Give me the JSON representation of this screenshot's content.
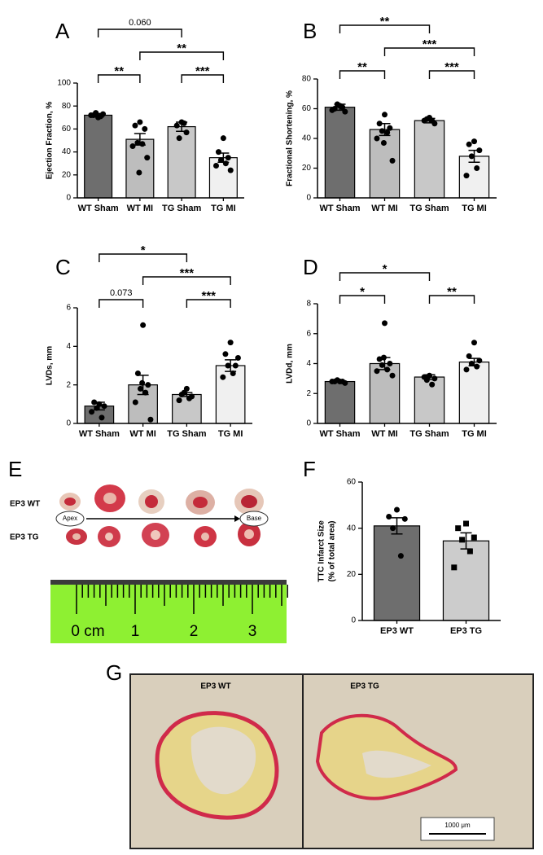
{
  "chart_data": [
    {
      "type": "bar",
      "panel": "A",
      "ylabel": "Ejection Fraction, %",
      "categories": [
        "WT Sham",
        "WT MI",
        "TG Sham",
        "TG MI"
      ],
      "values": [
        72,
        51,
        62,
        35
      ],
      "errors": [
        1.5,
        5,
        4,
        4
      ],
      "points": [
        [
          70,
          72,
          73,
          74,
          71,
          72
        ],
        [
          66,
          63,
          60,
          48,
          47,
          45,
          35,
          22
        ],
        [
          66,
          63,
          57,
          52,
          65
        ],
        [
          52,
          40,
          35,
          33,
          30,
          28,
          24
        ]
      ],
      "colors": [
        "#6e6e6e",
        "#bdbdbd",
        "#c8c8c8",
        "#f0f0f0"
      ],
      "markers": [
        "circle",
        "circle",
        "circle",
        "circle"
      ],
      "ylim": [
        0,
        100
      ],
      "yticks": [
        0,
        20,
        40,
        60,
        80,
        100
      ],
      "comparisons": [
        {
          "from": "WT Sham",
          "to": "WT MI",
          "label": "**"
        },
        {
          "from": "TG Sham",
          "to": "TG MI",
          "label": "***"
        },
        {
          "from": "WT MI",
          "to": "TG MI",
          "label": "**"
        },
        {
          "from": "WT Sham",
          "to": "TG Sham",
          "label": "0.060"
        }
      ]
    },
    {
      "type": "bar",
      "panel": "B",
      "ylabel": "Fractional Shortening, %",
      "categories": [
        "WT Sham",
        "WT MI",
        "TG Sham",
        "TG MI"
      ],
      "values": [
        61,
        46,
        52,
        28
      ],
      "errors": [
        2,
        4,
        1.5,
        4
      ],
      "points": [
        [
          62,
          60,
          58,
          63,
          61,
          59
        ],
        [
          56,
          50,
          47,
          45,
          44,
          40,
          25,
          37
        ],
        [
          54,
          52,
          50,
          53,
          52
        ],
        [
          38,
          36,
          32,
          28,
          20,
          15
        ]
      ],
      "colors": [
        "#6e6e6e",
        "#bdbdbd",
        "#c8c8c8",
        "#f0f0f0"
      ],
      "markers": [
        "circle",
        "circle",
        "circle",
        "circle"
      ],
      "ylim": [
        0,
        80
      ],
      "yticks": [
        0,
        20,
        40,
        60,
        80
      ],
      "comparisons": [
        {
          "from": "WT Sham",
          "to": "WT MI",
          "label": "**"
        },
        {
          "from": "TG Sham",
          "to": "TG MI",
          "label": "***"
        },
        {
          "from": "WT MI",
          "to": "TG MI",
          "label": "***"
        },
        {
          "from": "WT Sham",
          "to": "TG Sham",
          "label": "**"
        }
      ]
    },
    {
      "type": "bar",
      "panel": "C",
      "ylabel": "LVDs, mm",
      "categories": [
        "WT Sham",
        "WT MI",
        "TG Sham",
        "TG MI"
      ],
      "values": [
        0.9,
        2.0,
        1.5,
        3.0
      ],
      "errors": [
        0.2,
        0.5,
        0.1,
        0.3
      ],
      "points": [
        [
          1.0,
          1.1,
          0.9,
          0.8,
          0.3,
          0.6
        ],
        [
          5.1,
          2.6,
          2.0,
          1.8,
          1.6,
          1.1,
          0.2,
          2.1
        ],
        [
          1.8,
          1.5,
          1.4,
          1.6,
          1.3,
          1.2
        ],
        [
          4.2,
          3.6,
          3.0,
          3.0,
          2.6,
          2.4,
          3.4
        ]
      ],
      "colors": [
        "#6e6e6e",
        "#bdbdbd",
        "#c8c8c8",
        "#f0f0f0"
      ],
      "markers": [
        "circle",
        "circle",
        "circle",
        "circle"
      ],
      "ylim": [
        0,
        6
      ],
      "yticks": [
        0,
        2,
        4,
        6
      ],
      "comparisons": [
        {
          "from": "WT Sham",
          "to": "WT MI",
          "label": "0.073"
        },
        {
          "from": "TG Sham",
          "to": "TG MI",
          "label": "***"
        },
        {
          "from": "WT MI",
          "to": "TG MI",
          "label": "***"
        },
        {
          "from": "WT Sham",
          "to": "TG Sham",
          "label": "*"
        }
      ]
    },
    {
      "type": "bar",
      "panel": "D",
      "ylabel": "LVDd, mm",
      "categories": [
        "WT Sham",
        "WT MI",
        "TG Sham",
        "TG MI"
      ],
      "values": [
        2.8,
        4.0,
        3.1,
        4.1
      ],
      "errors": [
        0.05,
        0.4,
        0.15,
        0.25
      ],
      "points": [
        [
          2.8,
          2.8,
          2.7,
          2.9,
          2.8,
          2.8
        ],
        [
          6.7,
          4.3,
          4.0,
          3.9,
          3.6,
          3.5,
          3.2,
          4.4
        ],
        [
          3.2,
          3.1,
          3.0,
          2.9,
          2.6
        ],
        [
          5.4,
          4.5,
          4.2,
          4.0,
          3.8,
          3.6
        ]
      ],
      "colors": [
        "#6e6e6e",
        "#bdbdbd",
        "#c8c8c8",
        "#f0f0f0"
      ],
      "markers": [
        "circle",
        "circle",
        "circle",
        "circle"
      ],
      "ylim": [
        0,
        8
      ],
      "yticks": [
        0,
        2,
        4,
        6,
        8
      ],
      "comparisons": [
        {
          "from": "WT Sham",
          "to": "WT MI",
          "label": "*"
        },
        {
          "from": "TG Sham",
          "to": "TG MI",
          "label": "**"
        },
        {
          "from": "WT Sham",
          "to": "TG Sham",
          "label": "*"
        }
      ]
    },
    {
      "type": "bar",
      "panel": "F",
      "ylabel": [
        "TTC Infarct Size",
        "(% of total area)"
      ],
      "categories": [
        "EP3 WT",
        "EP3 TG"
      ],
      "values": [
        41,
        34.5
      ],
      "errors": [
        3.5,
        3.5
      ],
      "points": [
        [
          48,
          45,
          44,
          40,
          28
        ],
        [
          42,
          40,
          36,
          35,
          30,
          23
        ]
      ],
      "colors": [
        "#6e6e6e",
        "#cccccc"
      ],
      "markers": [
        "circle",
        "square"
      ],
      "ylim": [
        0,
        60
      ],
      "yticks": [
        0,
        20,
        40,
        60
      ],
      "comparisons": []
    }
  ],
  "photo": {
    "panel": "E",
    "rows": [
      "EP3 WT",
      "EP3 TG"
    ],
    "start": "Apex",
    "end": "Base",
    "ruler": [
      "0 cm",
      "1",
      "2",
      "3"
    ]
  },
  "histology": {
    "panel": "G",
    "sections": [
      "EP3 WT",
      "EP3 TG"
    ],
    "scale_bar": "1000 μm"
  }
}
